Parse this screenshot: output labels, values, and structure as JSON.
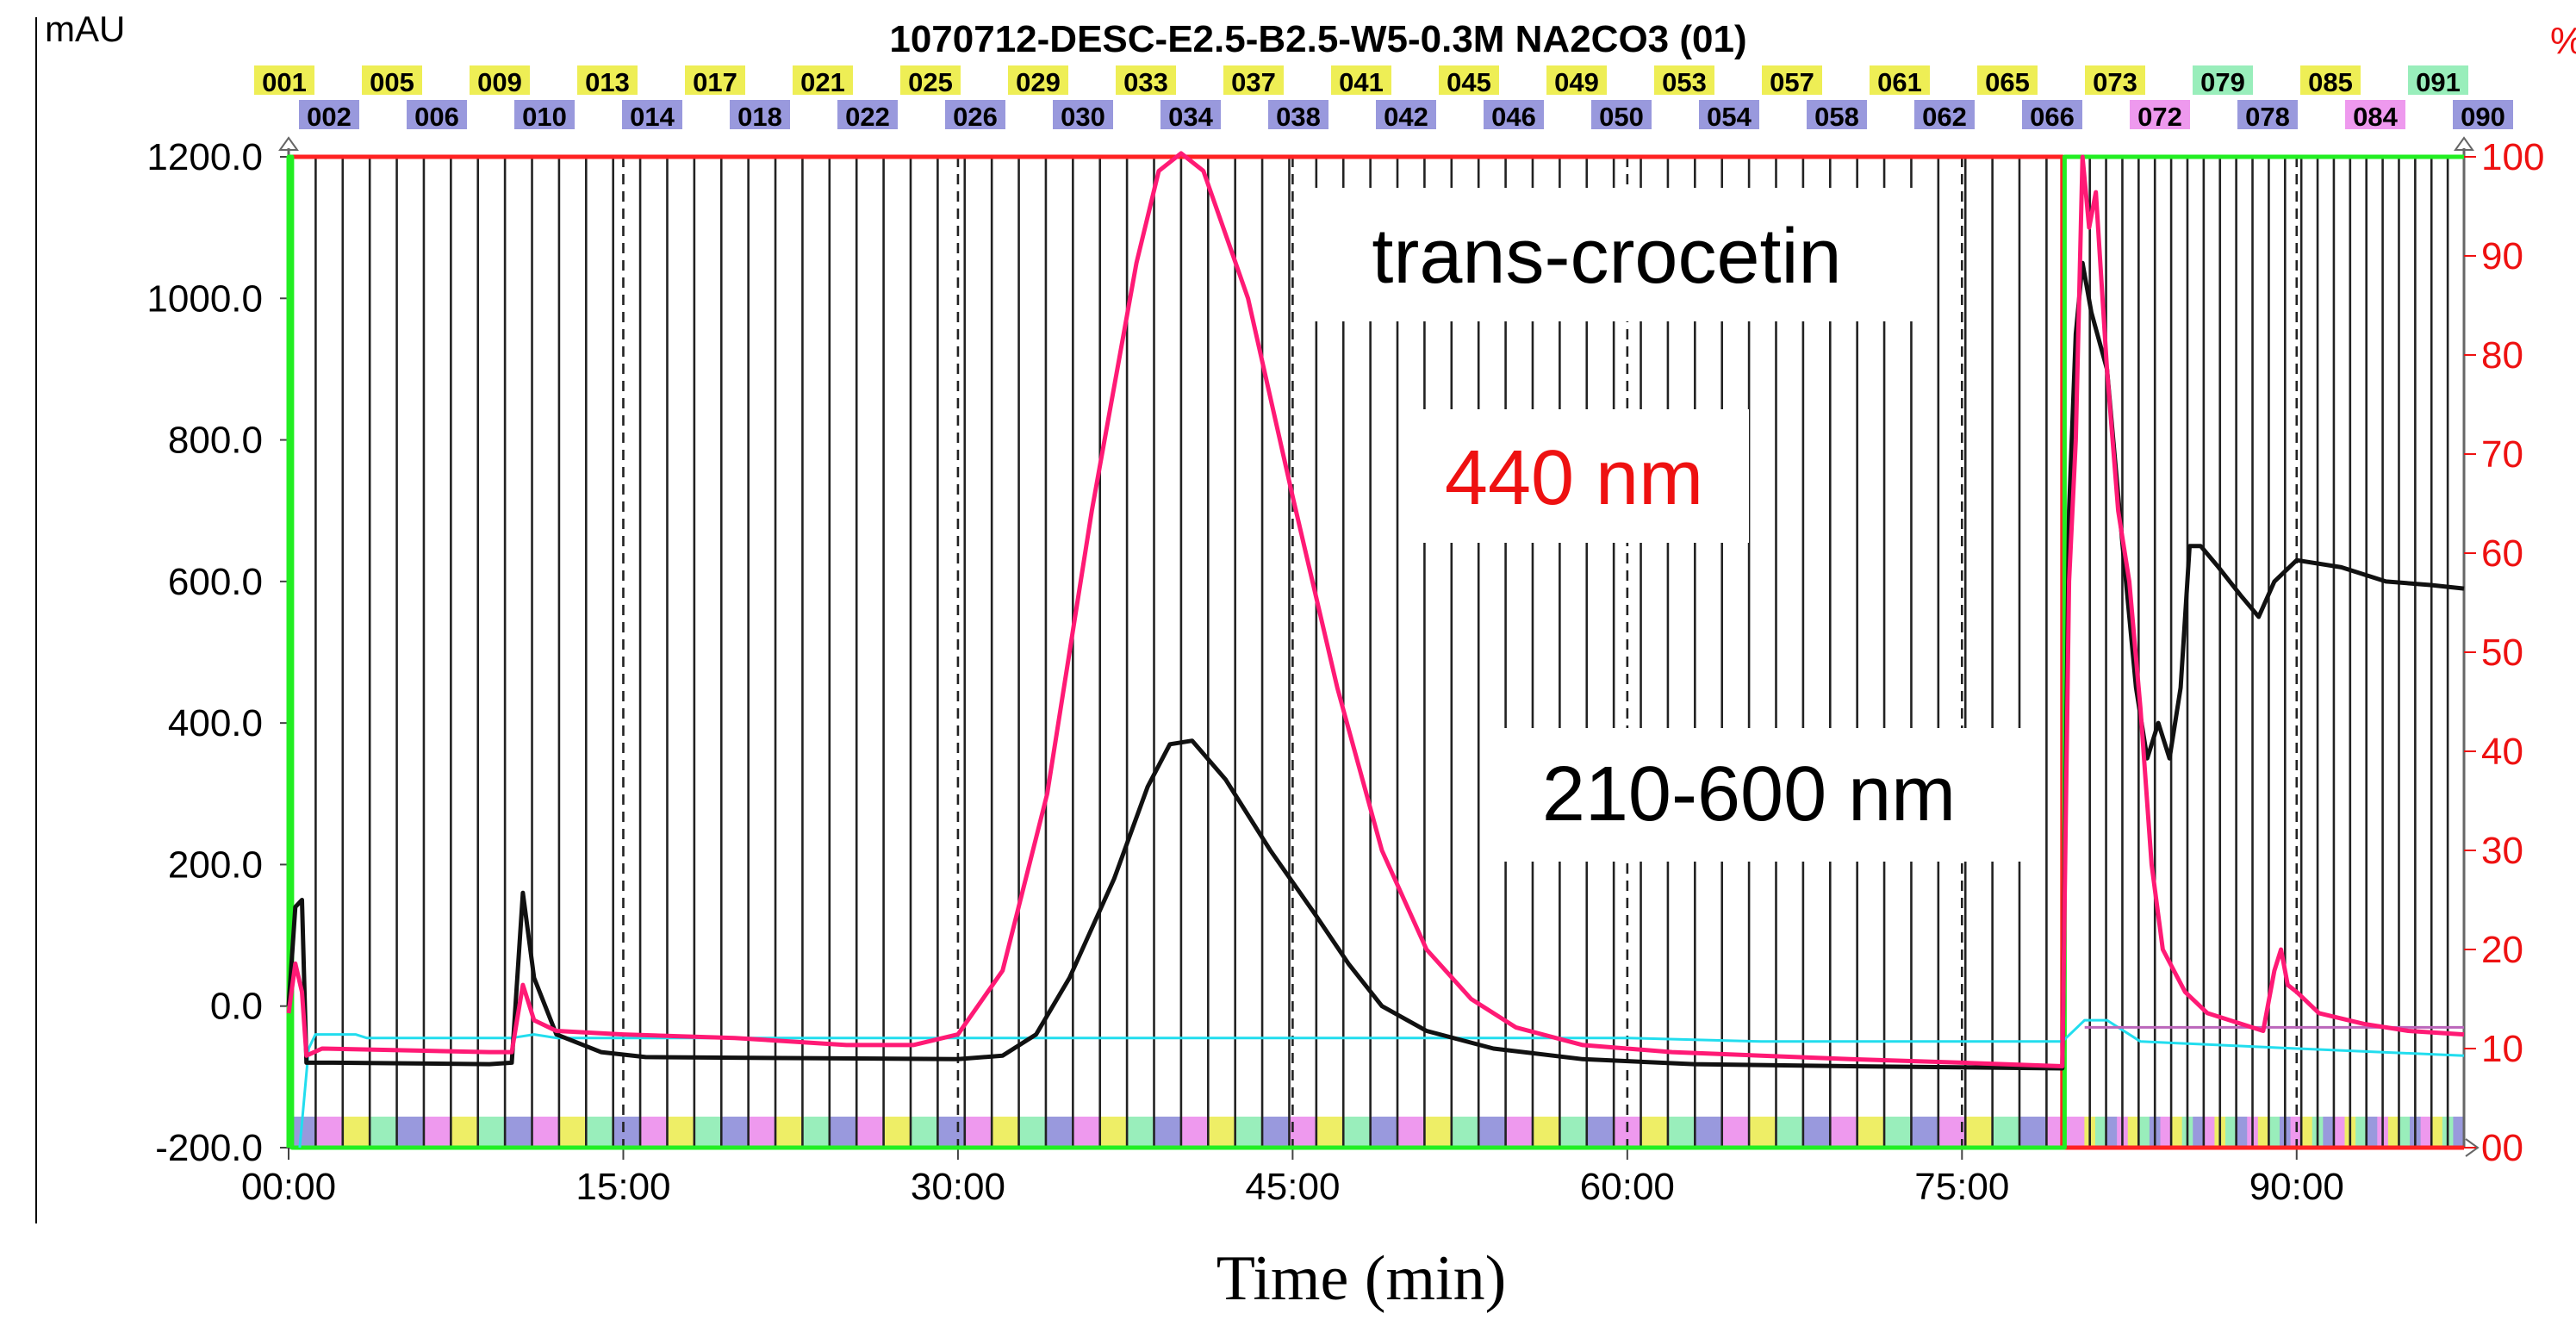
{
  "chart_data": {
    "type": "line",
    "title": "1070712-DESC-E2.5-B2.5-W5-0.3M NA2CO3 (01)",
    "xlabel": "Time (min)",
    "ylabel": "mAU",
    "y2label": "%",
    "xlim": [
      0,
      97.5
    ],
    "ylim": [
      -200,
      1200
    ],
    "y2lim": [
      0,
      100
    ],
    "x_ticks": [
      0,
      15,
      30,
      45,
      60,
      75,
      90
    ],
    "x_tick_labels": [
      "00:00",
      "15:00",
      "30:00",
      "45:00",
      "60:00",
      "75:00",
      "90:00"
    ],
    "dashed_x": [
      15,
      30,
      45,
      60,
      75,
      90
    ],
    "y_ticks": [
      -200,
      0,
      200,
      400,
      600,
      800,
      1000,
      1200
    ],
    "y_tick_labels": [
      "-200.0",
      "0.0",
      "200.0",
      "400.0",
      "600.0",
      "800.0",
      "1000.0",
      "1200.0"
    ],
    "y2_ticks": [
      0,
      10,
      20,
      30,
      40,
      50,
      60,
      70,
      80,
      90,
      100
    ],
    "y2_tick_labels": [
      "00",
      "10",
      "20",
      "30",
      "40",
      "50",
      "60",
      "70",
      "80",
      "90",
      "100"
    ],
    "fraction_labels_top": [
      "001",
      "005",
      "009",
      "013",
      "017",
      "021",
      "025",
      "029",
      "033",
      "037",
      "041",
      "045",
      "049",
      "053",
      "057",
      "061",
      "065",
      "073",
      "079",
      "085",
      "091"
    ],
    "fraction_labels_bottom": [
      "002",
      "006",
      "010",
      "014",
      "018",
      "022",
      "026",
      "030",
      "034",
      "038",
      "042",
      "046",
      "050",
      "054",
      "058",
      "062",
      "066",
      "072",
      "078",
      "084",
      "090"
    ],
    "annotations": [
      "trans-crocetin",
      "440 nm",
      "210-600 nm"
    ],
    "series": [
      {
        "name": "440 nm",
        "color": "#ff1a75",
        "points": [
          [
            0,
            -10
          ],
          [
            0.3,
            60
          ],
          [
            0.6,
            20
          ],
          [
            0.8,
            -70
          ],
          [
            1.5,
            -60
          ],
          [
            9,
            -65
          ],
          [
            10,
            -65
          ],
          [
            10.5,
            30
          ],
          [
            11,
            -20
          ],
          [
            12,
            -35
          ],
          [
            15,
            -40
          ],
          [
            20,
            -45
          ],
          [
            25,
            -55
          ],
          [
            28,
            -55
          ],
          [
            30,
            -40
          ],
          [
            32,
            50
          ],
          [
            34,
            300
          ],
          [
            36,
            700
          ],
          [
            38,
            1050
          ],
          [
            39,
            1180
          ],
          [
            40,
            1205
          ],
          [
            41,
            1180
          ],
          [
            43,
            1000
          ],
          [
            45,
            720
          ],
          [
            47,
            450
          ],
          [
            49,
            220
          ],
          [
            51,
            80
          ],
          [
            53,
            10
          ],
          [
            55,
            -30
          ],
          [
            58,
            -55
          ],
          [
            62,
            -65
          ],
          [
            66,
            -70
          ],
          [
            70,
            -75
          ],
          [
            75,
            -80
          ],
          [
            79.5,
            -85
          ],
          [
            79.8,
            600
          ],
          [
            80.1,
            800
          ],
          [
            80.4,
            1200
          ],
          [
            80.7,
            1100
          ],
          [
            81,
            1150
          ],
          [
            81.5,
            900
          ],
          [
            82,
            700
          ],
          [
            82.5,
            600
          ],
          [
            83,
            420
          ],
          [
            83.5,
            200
          ],
          [
            84,
            80
          ],
          [
            85,
            20
          ],
          [
            86,
            -10
          ],
          [
            88,
            -30
          ],
          [
            88.5,
            -35
          ],
          [
            89,
            50
          ],
          [
            89.3,
            80
          ],
          [
            89.6,
            30
          ],
          [
            90,
            20
          ],
          [
            91,
            -10
          ],
          [
            93,
            -25
          ],
          [
            95,
            -35
          ],
          [
            97.5,
            -40
          ]
        ]
      },
      {
        "name": "210-600 nm",
        "color": "#111111",
        "points": [
          [
            0,
            0
          ],
          [
            0.3,
            140
          ],
          [
            0.6,
            150
          ],
          [
            0.8,
            -80
          ],
          [
            2,
            -80
          ],
          [
            9,
            -82
          ],
          [
            10,
            -80
          ],
          [
            10.5,
            160
          ],
          [
            11,
            40
          ],
          [
            12,
            -40
          ],
          [
            14,
            -65
          ],
          [
            16,
            -72
          ],
          [
            30,
            -75
          ],
          [
            32,
            -70
          ],
          [
            33.5,
            -40
          ],
          [
            35,
            40
          ],
          [
            37,
            180
          ],
          [
            38.5,
            310
          ],
          [
            39.5,
            370
          ],
          [
            40.5,
            375
          ],
          [
            42,
            320
          ],
          [
            44,
            220
          ],
          [
            46,
            130
          ],
          [
            47.5,
            60
          ],
          [
            49,
            0
          ],
          [
            51,
            -35
          ],
          [
            54,
            -60
          ],
          [
            58,
            -75
          ],
          [
            63,
            -82
          ],
          [
            70,
            -85
          ],
          [
            79.5,
            -88
          ],
          [
            79.8,
            700
          ],
          [
            80.1,
            950
          ],
          [
            80.4,
            1050
          ],
          [
            80.8,
            980
          ],
          [
            81.5,
            900
          ],
          [
            82.2,
            650
          ],
          [
            82.8,
            450
          ],
          [
            83.3,
            350
          ],
          [
            83.8,
            400
          ],
          [
            84.3,
            350
          ],
          [
            84.8,
            450
          ],
          [
            85.2,
            650
          ],
          [
            85.7,
            650
          ],
          [
            86.5,
            620
          ],
          [
            87.5,
            580
          ],
          [
            88.3,
            550
          ],
          [
            89,
            600
          ],
          [
            90,
            630
          ],
          [
            92,
            620
          ],
          [
            94,
            600
          ],
          [
            96,
            595
          ],
          [
            97.5,
            590
          ]
        ]
      },
      {
        "name": "cyan trace",
        "color": "#22ddee",
        "points": [
          [
            0.5,
            -200
          ],
          [
            0.9,
            -60
          ],
          [
            1.2,
            -40
          ],
          [
            3,
            -40
          ],
          [
            3.5,
            -45
          ],
          [
            10,
            -45
          ],
          [
            11,
            -40
          ],
          [
            12,
            -45
          ],
          [
            60,
            -45
          ],
          [
            66,
            -50
          ],
          [
            79.5,
            -50
          ],
          [
            80.5,
            -20
          ],
          [
            81.5,
            -20
          ],
          [
            83,
            -50
          ],
          [
            90,
            -60
          ],
          [
            97.5,
            -70
          ]
        ]
      },
      {
        "name": "% gradient",
        "color": "#ff2222",
        "axis": "y2",
        "points": [
          [
            0,
            100
          ],
          [
            79.5,
            100
          ],
          [
            79.5,
            0
          ],
          [
            97.5,
            0
          ]
        ]
      },
      {
        "name": "green trace",
        "color": "#22ee22",
        "axis": "y2",
        "points": [
          [
            0,
            0
          ],
          [
            0,
            100
          ],
          [
            0.15,
            100
          ],
          [
            0.15,
            0
          ],
          [
            79.6,
            0
          ],
          [
            79.6,
            100
          ],
          [
            97.5,
            100
          ]
        ]
      },
      {
        "name": "purple trace",
        "color": "#bb66bb",
        "points": [
          [
            80.5,
            -30
          ],
          [
            97.5,
            -30
          ]
        ]
      }
    ]
  }
}
